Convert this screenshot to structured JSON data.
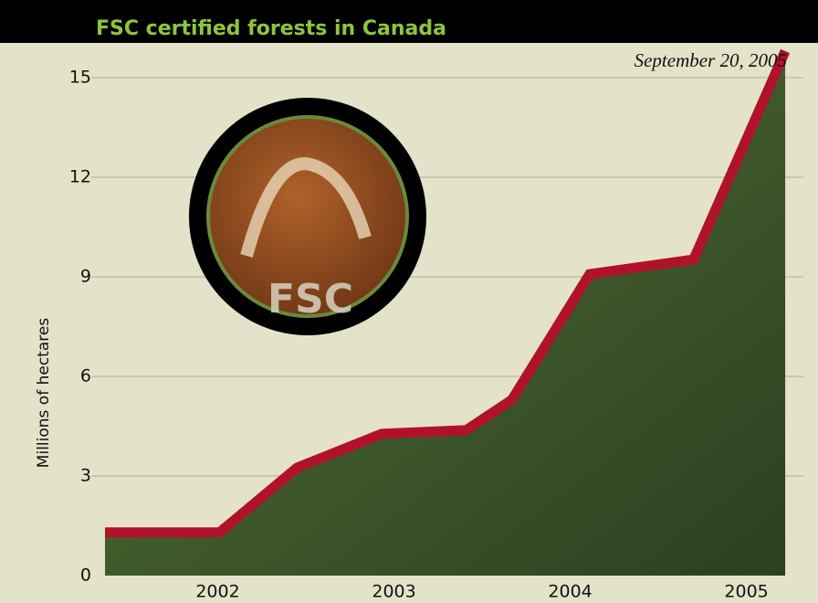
{
  "chart_data": {
    "type": "line",
    "title": "FSC certified forests in Canada",
    "annotation": "September 20, 2005",
    "y_label": "Millions of hectares",
    "logo_text": "FSC",
    "x": [
      2001.36,
      2002.01,
      2002.45,
      2002.93,
      2003.41,
      2003.67,
      2004.11,
      2004.7,
      2005.22
    ],
    "values": [
      1.3,
      1.3,
      3.25,
      4.27,
      4.38,
      5.3,
      9.08,
      9.52,
      15.8
    ],
    "color": "#b0122a",
    "xlim": [
      2001.36,
      2005.23
    ],
    "xticks": [
      2002,
      2003,
      2004,
      2005
    ],
    "ylim": [
      0,
      16
    ],
    "yticks": [
      0,
      3,
      6,
      9,
      12,
      15
    ],
    "grid": true
  }
}
